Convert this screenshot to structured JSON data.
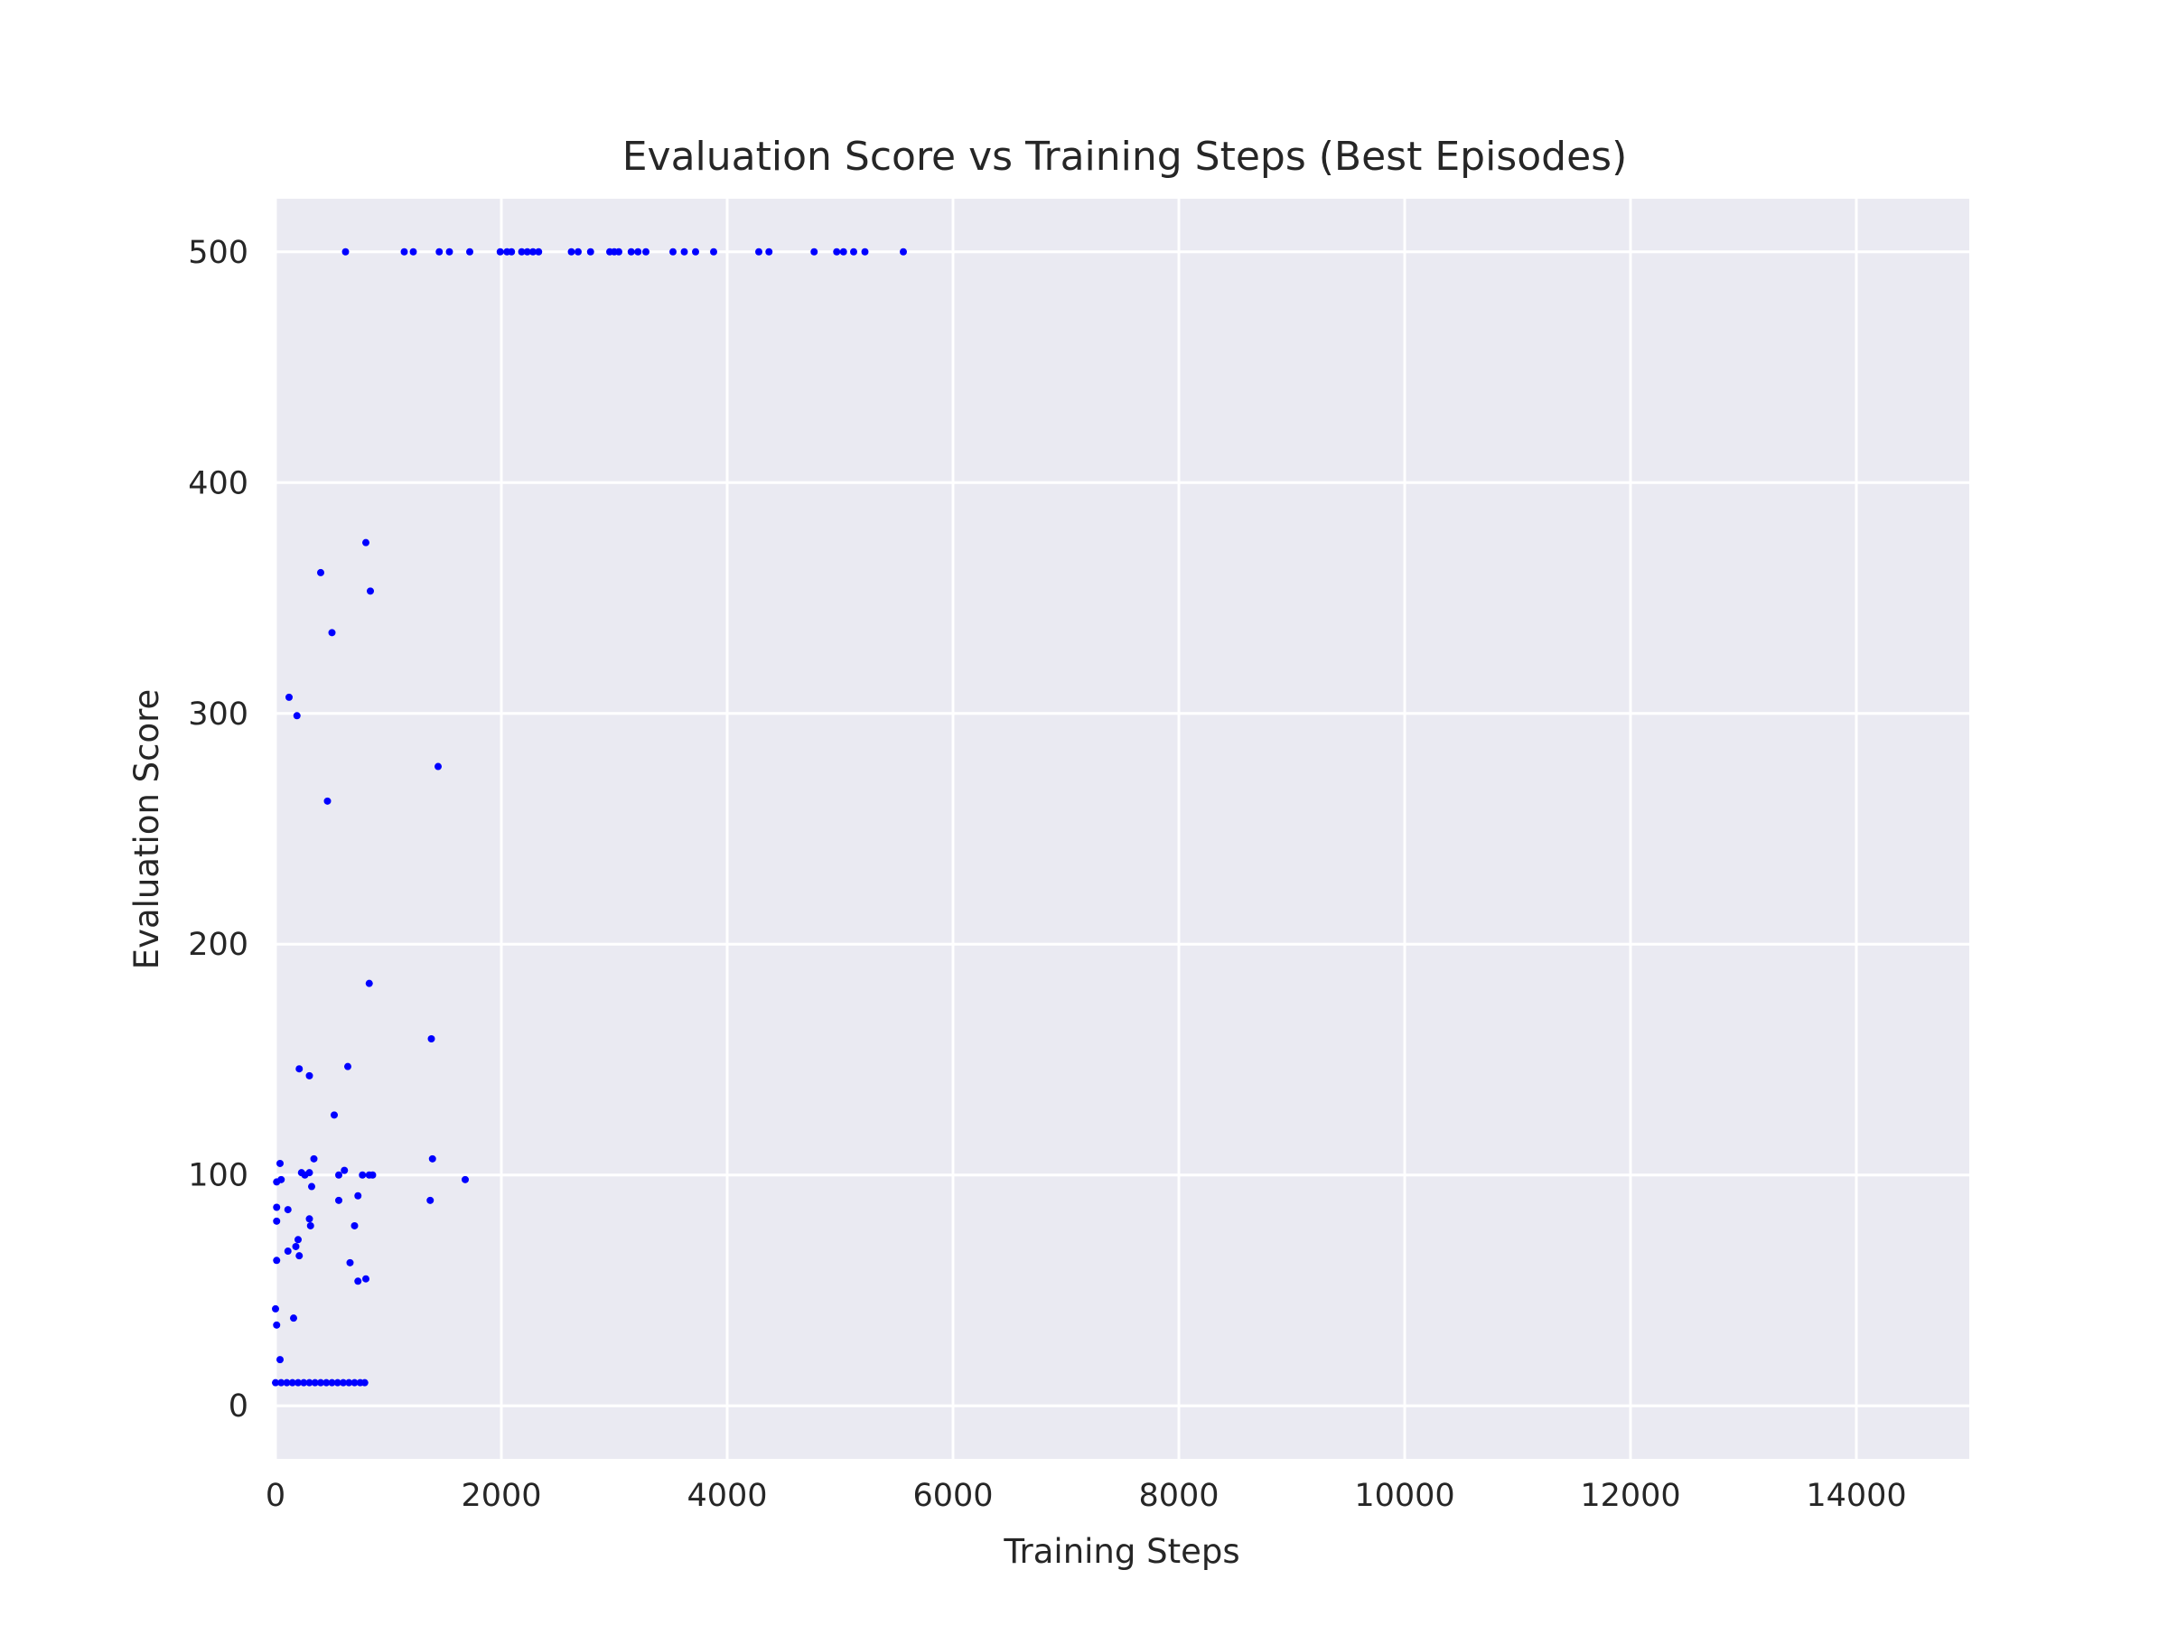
{
  "chart_data": {
    "type": "scatter",
    "title": "Evaluation Score vs Training Steps (Best Episodes)",
    "xlabel": "Training Steps",
    "ylabel": "Evaluation Score",
    "xlim": [
      0,
      15000
    ],
    "ylim": [
      -23,
      523
    ],
    "xticks": [
      0,
      2000,
      4000,
      6000,
      8000,
      10000,
      12000,
      14000
    ],
    "yticks": [
      0,
      100,
      200,
      300,
      400,
      500
    ],
    "grid": true,
    "background": "#eaeaf2",
    "grid_color": "#ffffff",
    "marker_color": "#0000ff",
    "series": [
      {
        "points": [
          [
            620,
            500
          ],
          [
            1140,
            500
          ],
          [
            1220,
            500
          ],
          [
            1450,
            500
          ],
          [
            1540,
            500
          ],
          [
            1720,
            500
          ],
          [
            1990,
            500
          ],
          [
            2050,
            500
          ],
          [
            2090,
            500
          ],
          [
            2180,
            500
          ],
          [
            2230,
            500
          ],
          [
            2280,
            500
          ],
          [
            2330,
            500
          ],
          [
            2620,
            500
          ],
          [
            2680,
            500
          ],
          [
            2790,
            500
          ],
          [
            2960,
            500
          ],
          [
            3000,
            500
          ],
          [
            3040,
            500
          ],
          [
            3150,
            500
          ],
          [
            3210,
            500
          ],
          [
            3280,
            500
          ],
          [
            3520,
            500
          ],
          [
            3620,
            500
          ],
          [
            3720,
            500
          ],
          [
            3880,
            500
          ],
          [
            4280,
            500
          ],
          [
            4370,
            500
          ],
          [
            4770,
            500
          ],
          [
            4970,
            500
          ],
          [
            5030,
            500
          ],
          [
            5120,
            500
          ],
          [
            5220,
            500
          ],
          [
            5560,
            500
          ],
          [
            800,
            374
          ],
          [
            840,
            353
          ],
          [
            400,
            361
          ],
          [
            500,
            335
          ],
          [
            120,
            307
          ],
          [
            190,
            299
          ],
          [
            460,
            262
          ],
          [
            1440,
            277
          ],
          [
            830,
            183
          ],
          [
            1380,
            159
          ],
          [
            210,
            146
          ],
          [
            640,
            147
          ],
          [
            300,
            143
          ],
          [
            520,
            126
          ],
          [
            40,
            105
          ],
          [
            340,
            107
          ],
          [
            1390,
            107
          ],
          [
            50,
            98
          ],
          [
            10,
            97
          ],
          [
            230,
            101
          ],
          [
            260,
            100
          ],
          [
            300,
            101
          ],
          [
            560,
            100
          ],
          [
            610,
            102
          ],
          [
            770,
            100
          ],
          [
            830,
            100
          ],
          [
            860,
            100
          ],
          [
            1680,
            98
          ],
          [
            320,
            95
          ],
          [
            10,
            86
          ],
          [
            110,
            85
          ],
          [
            560,
            89
          ],
          [
            1370,
            89
          ],
          [
            730,
            91
          ],
          [
            300,
            81
          ],
          [
            310,
            78
          ],
          [
            700,
            78
          ],
          [
            10,
            80
          ],
          [
            200,
            72
          ],
          [
            180,
            69
          ],
          [
            110,
            67
          ],
          [
            210,
            65
          ],
          [
            10,
            63
          ],
          [
            660,
            62
          ],
          [
            800,
            55
          ],
          [
            730,
            54
          ],
          [
            0,
            42
          ],
          [
            10,
            35
          ],
          [
            160,
            38
          ],
          [
            40,
            20
          ],
          [
            0,
            10
          ],
          [
            50,
            10
          ],
          [
            100,
            10
          ],
          [
            150,
            10
          ],
          [
            200,
            10
          ],
          [
            250,
            10
          ],
          [
            300,
            10
          ],
          [
            350,
            10
          ],
          [
            400,
            10
          ],
          [
            450,
            10
          ],
          [
            500,
            10
          ],
          [
            550,
            10
          ],
          [
            600,
            10
          ],
          [
            650,
            10
          ],
          [
            700,
            10
          ],
          [
            750,
            10
          ],
          [
            790,
            10
          ]
        ]
      }
    ]
  }
}
